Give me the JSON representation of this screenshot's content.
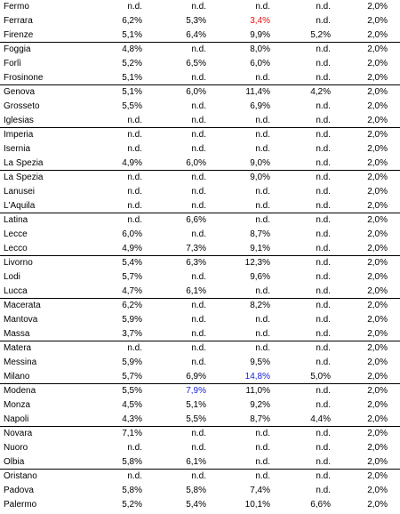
{
  "highlight_colors": {
    "red": "#e8100c",
    "blue": "#1c24d8"
  },
  "rows": [
    {
      "cells": [
        "Fermo",
        "n.d.",
        "n.d.",
        "n.d.",
        "n.d.",
        "2,0%"
      ],
      "group_end": false
    },
    {
      "cells": [
        "Ferrara",
        "6,2%",
        "5,3%",
        "3,4%",
        "n.d.",
        "2,0%"
      ],
      "group_end": false,
      "highlight": {
        "col": 3,
        "color": "red"
      }
    },
    {
      "cells": [
        "Firenze",
        "5,1%",
        "6,4%",
        "9,9%",
        "5,2%",
        "2,0%"
      ],
      "group_end": true
    },
    {
      "cells": [
        "Foggia",
        "4,8%",
        "n.d.",
        "8,0%",
        "n.d.",
        "2,0%"
      ],
      "group_end": false
    },
    {
      "cells": [
        "Forlì",
        "5,2%",
        "6,5%",
        "6,0%",
        "n.d.",
        "2,0%"
      ],
      "group_end": false
    },
    {
      "cells": [
        "Frosinone",
        "5,1%",
        "n.d.",
        "n.d.",
        "n.d.",
        "2,0%"
      ],
      "group_end": true
    },
    {
      "cells": [
        "Genova",
        "5,1%",
        "6,0%",
        "11,4%",
        "4,2%",
        "2,0%"
      ],
      "group_end": false
    },
    {
      "cells": [
        "Grosseto",
        "5,5%",
        "n.d.",
        "6,9%",
        "n.d.",
        "2,0%"
      ],
      "group_end": false
    },
    {
      "cells": [
        "Iglesias",
        "n.d.",
        "n.d.",
        "n.d.",
        "n.d.",
        "2,0%"
      ],
      "group_end": true
    },
    {
      "cells": [
        "Imperia",
        "n.d.",
        "n.d.",
        "n.d.",
        "n.d.",
        "2,0%"
      ],
      "group_end": false
    },
    {
      "cells": [
        "Isernia",
        "n.d.",
        "n.d.",
        "n.d.",
        "n.d.",
        "2,0%"
      ],
      "group_end": false
    },
    {
      "cells": [
        "La Spezia",
        "4,9%",
        "6,0%",
        "9,0%",
        "n.d.",
        "2,0%"
      ],
      "group_end": true
    },
    {
      "cells": [
        "La Spezia",
        "n.d.",
        "n.d.",
        "9,0%",
        "n.d.",
        "2,0%"
      ],
      "group_end": false
    },
    {
      "cells": [
        "Lanusei",
        "n.d.",
        "n.d.",
        "n.d.",
        "n.d.",
        "2,0%"
      ],
      "group_end": false
    },
    {
      "cells": [
        "L'Aquila",
        "n.d.",
        "n.d.",
        "n.d.",
        "n.d.",
        "2,0%"
      ],
      "group_end": true
    },
    {
      "cells": [
        "Latina",
        "n.d.",
        "6,6%",
        "n.d.",
        "n.d.",
        "2,0%"
      ],
      "group_end": false
    },
    {
      "cells": [
        "Lecce",
        "6,0%",
        "n.d.",
        "8,7%",
        "n.d.",
        "2,0%"
      ],
      "group_end": false
    },
    {
      "cells": [
        "Lecco",
        "4,9%",
        "7,3%",
        "9,1%",
        "n.d.",
        "2,0%"
      ],
      "group_end": true
    },
    {
      "cells": [
        "Livorno",
        "5,4%",
        "6,3%",
        "12,3%",
        "n.d.",
        "2,0%"
      ],
      "group_end": false
    },
    {
      "cells": [
        "Lodi",
        "5,7%",
        "n.d.",
        "9,6%",
        "n.d.",
        "2,0%"
      ],
      "group_end": false
    },
    {
      "cells": [
        "Lucca",
        "4,7%",
        "6,1%",
        "n.d.",
        "n.d.",
        "2,0%"
      ],
      "group_end": true
    },
    {
      "cells": [
        "Macerata",
        "6,2%",
        "n.d.",
        "8,2%",
        "n.d.",
        "2,0%"
      ],
      "group_end": false
    },
    {
      "cells": [
        "Mantova",
        "5,9%",
        "n.d.",
        "n.d.",
        "n.d.",
        "2,0%"
      ],
      "group_end": false
    },
    {
      "cells": [
        "Massa",
        "3,7%",
        "n.d.",
        "n.d.",
        "n.d.",
        "2,0%"
      ],
      "group_end": true
    },
    {
      "cells": [
        "Matera",
        "n.d.",
        "n.d.",
        "n.d.",
        "n.d.",
        "2,0%"
      ],
      "group_end": false
    },
    {
      "cells": [
        "Messina",
        "5,9%",
        "n.d.",
        "9,5%",
        "n.d.",
        "2,0%"
      ],
      "group_end": false
    },
    {
      "cells": [
        "Milano",
        "5,7%",
        "6,9%",
        "14,8%",
        "5,0%",
        "2,0%"
      ],
      "group_end": true,
      "highlight": {
        "col": 3,
        "color": "blue"
      }
    },
    {
      "cells": [
        "Modena",
        "5,5%",
        "7,9%",
        "11,0%",
        "n.d.",
        "2,0%"
      ],
      "group_end": false,
      "highlight": {
        "col": 2,
        "color": "blue"
      }
    },
    {
      "cells": [
        "Monza",
        "4,5%",
        "5,1%",
        "9,2%",
        "n.d.",
        "2,0%"
      ],
      "group_end": false
    },
    {
      "cells": [
        "Napoli",
        "4,3%",
        "5,5%",
        "8,7%",
        "4,4%",
        "2,0%"
      ],
      "group_end": true
    },
    {
      "cells": [
        "Novara",
        "7,1%",
        "n.d.",
        "n.d.",
        "n.d.",
        "2,0%"
      ],
      "group_end": false
    },
    {
      "cells": [
        "Nuoro",
        "n.d.",
        "n.d.",
        "n.d.",
        "n.d.",
        "2,0%"
      ],
      "group_end": false
    },
    {
      "cells": [
        "Olbia",
        "5,8%",
        "6,1%",
        "n.d.",
        "n.d.",
        "2,0%"
      ],
      "group_end": true
    },
    {
      "cells": [
        "Oristano",
        "n.d.",
        "n.d.",
        "n.d.",
        "n.d.",
        "2,0%"
      ],
      "group_end": false
    },
    {
      "cells": [
        "Padova",
        "5,8%",
        "5,8%",
        "7,4%",
        "n.d.",
        "2,0%"
      ],
      "group_end": false
    },
    {
      "cells": [
        "Palermo",
        "5,2%",
        "5,4%",
        "10,1%",
        "6,6%",
        "2,0%"
      ],
      "group_end": false
    }
  ]
}
